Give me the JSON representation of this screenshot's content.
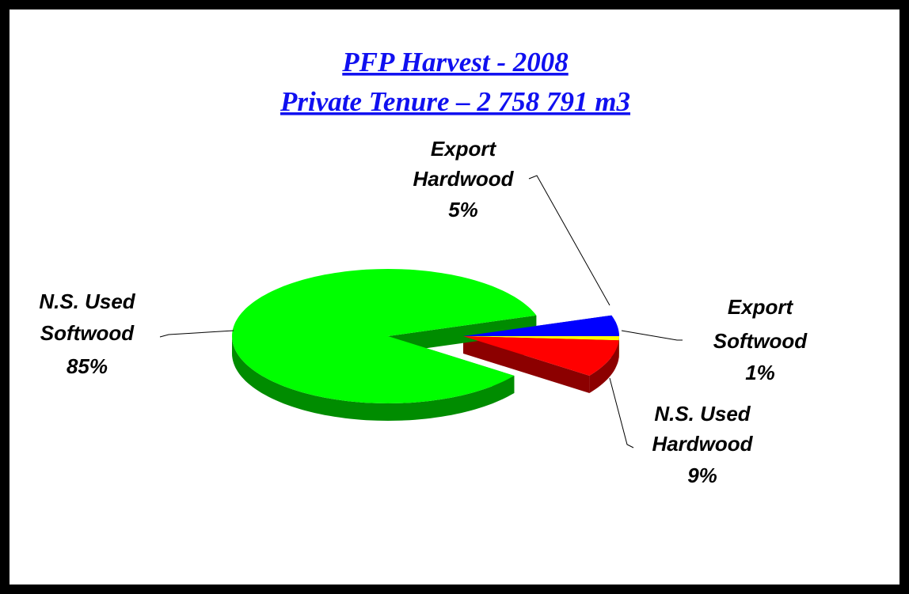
{
  "chart_data": {
    "type": "pie3d",
    "title": [
      "PFP Harvest  - 2008",
      "Private Tenure – 2 758 791 m3"
    ],
    "categories": [
      [
        "Export",
        "Hardwood"
      ],
      [
        "Export",
        "Softwood"
      ],
      [
        "N.S. Used",
        "Hardwood"
      ],
      [
        "N.S. Used",
        "Softwood"
      ]
    ],
    "values": [
      5,
      1,
      9,
      85
    ],
    "value_labels": [
      "5%",
      "1%",
      "9%",
      "85%"
    ],
    "colors": [
      "#0000ff",
      "#ffff00",
      "#ff0000",
      "#00ff00"
    ]
  }
}
